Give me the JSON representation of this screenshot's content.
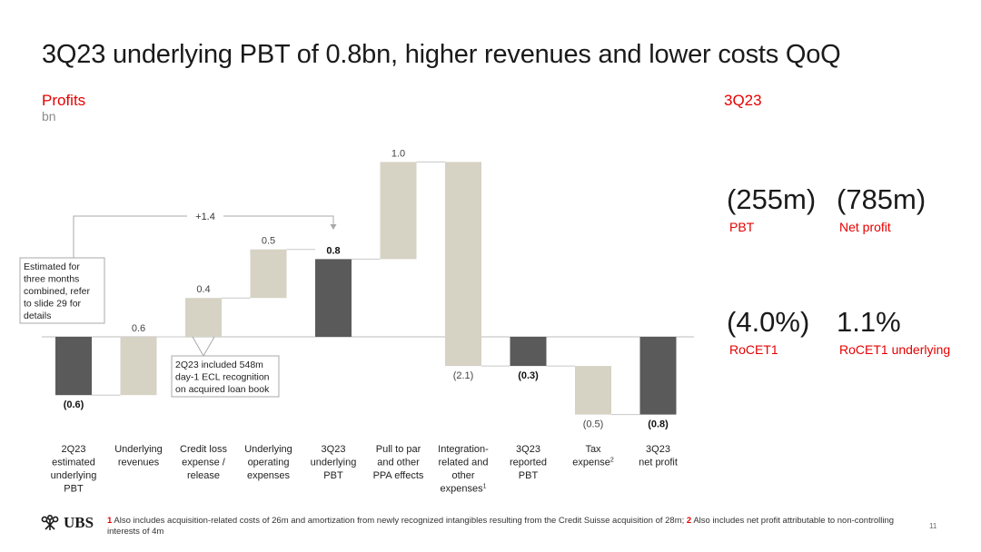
{
  "title": "3Q23 underlying PBT of 0.8bn, higher revenues and lower costs QoQ",
  "chart_header": {
    "label": "Profits",
    "unit": "bn"
  },
  "kpi_header": "3Q23",
  "kpis": [
    {
      "value": "(255m)",
      "label": "PBT"
    },
    {
      "value": "(785m)",
      "label": "Net profit"
    },
    {
      "value": "(4.0%)",
      "label": "RoCET1"
    },
    {
      "value": "1.1%",
      "label": "RoCET1 underlying"
    }
  ],
  "chart_data": {
    "type": "bar",
    "subtype": "waterfall",
    "title": "Profits",
    "ylabel": "bn",
    "ylim": [
      -1.1,
      1.1
    ],
    "categories": [
      "2Q23 estimated underlying PBT",
      "Underlying revenues",
      "Credit loss expense / release",
      "Underlying operating expenses",
      "3Q23 underlying PBT",
      "Pull to par and other PPA effects",
      "Integration-related and other expenses",
      "3Q23 reported PBT",
      "Tax expense",
      "3Q23 net profit"
    ],
    "category_lines": [
      [
        "2Q23",
        "estimated",
        "underlying",
        "PBT"
      ],
      [
        "Underlying",
        "revenues"
      ],
      [
        "Credit loss",
        "expense /",
        "release"
      ],
      [
        "Underlying",
        "operating",
        "expenses"
      ],
      [
        "3Q23",
        "underlying",
        "PBT"
      ],
      [
        "Pull to par",
        "and other",
        "PPA effects"
      ],
      [
        "Integration-",
        "related and",
        "other",
        "expenses"
      ],
      [
        "3Q23",
        "reported",
        "PBT"
      ],
      [
        "Tax",
        "expense"
      ],
      [
        "3Q23",
        "net profit"
      ]
    ],
    "category_superscripts": [
      "",
      "",
      "",
      "",
      "",
      "",
      "1",
      "",
      "2",
      ""
    ],
    "kinds": [
      "total",
      "delta",
      "delta",
      "delta",
      "total",
      "delta",
      "delta",
      "total",
      "delta",
      "total"
    ],
    "values": [
      -0.6,
      0.6,
      0.4,
      0.5,
      0.8,
      1.0,
      -2.1,
      -0.3,
      -0.5,
      -0.8
    ],
    "value_labels": [
      "(0.6)",
      "0.6",
      "0.4",
      "0.5",
      "0.8",
      "1.0",
      "(2.1)",
      "(0.3)",
      "(0.5)",
      "(0.8)"
    ],
    "colors": {
      "total": "#5a5a5a",
      "delta": "#d6d2c4",
      "connector": "#c8c8c8",
      "axis": "#bdbdbd"
    },
    "bracket_label": "+1.4",
    "annotations": [
      {
        "text_lines": [
          "Estimated for",
          "three months",
          "combined, refer",
          "to slide 29 for",
          "details"
        ]
      },
      {
        "text_lines": [
          "2Q23 included 548m",
          "day-1 ECL recognition",
          "on acquired loan book"
        ]
      }
    ]
  },
  "footnote": {
    "n1": "1",
    "t1": "Also includes acquisition-related costs of 26m and amortization from newly recognized intangibles resulting from the Credit Suisse acquisition of 28m;",
    "n2": "2",
    "t2": "Also includes net profit attributable to non-controlling interests of 4m"
  },
  "logo_text": "UBS",
  "logo_icon": "ubs-keys-icon",
  "page_number": "11"
}
